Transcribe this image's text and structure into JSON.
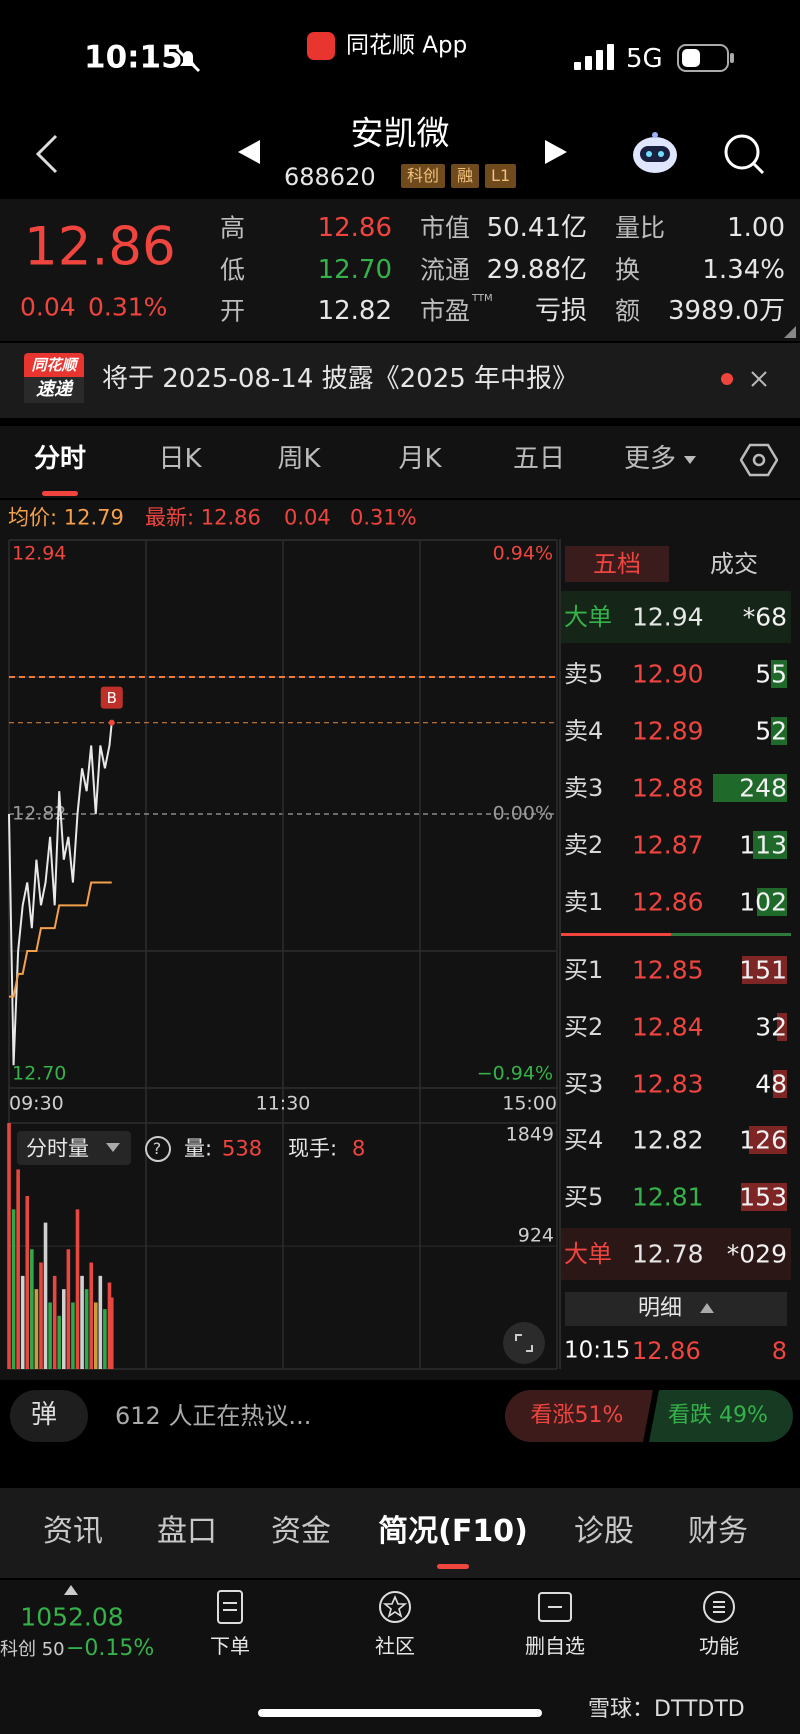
{
  "status_bar": {
    "time": "10:15",
    "app": "同花顺 App",
    "network": "5G"
  },
  "header": {
    "name": "安凯微",
    "code": "688620",
    "tags": [
      "科创",
      "融",
      "L1"
    ]
  },
  "quote": {
    "price": "12.86",
    "change": "0.04",
    "change_pct": "0.31%",
    "fields": [
      {
        "label": "高",
        "value": "12.86",
        "color": "#f0453f"
      },
      {
        "label": "低",
        "value": "12.70",
        "color": "#35b24a"
      },
      {
        "label": "开",
        "value": "12.82",
        "color": "#e6e6e6"
      },
      {
        "label": "市值",
        "value": "50.41亿",
        "color": "#e6e6e6"
      },
      {
        "label": "流通",
        "value": "29.88亿",
        "color": "#e6e6e6"
      },
      {
        "label": "市盈",
        "sup": "TTM",
        "value": "亏损",
        "color": "#e6e6e6"
      },
      {
        "label": "量比",
        "value": "1.00",
        "color": "#e6e6e6"
      },
      {
        "label": "换",
        "value": "1.34%",
        "color": "#e6e6e6"
      },
      {
        "label": "额",
        "value": "3989.0万",
        "color": "#e6e6e6"
      }
    ]
  },
  "notice": {
    "badge_top": "同花顺",
    "badge_bottom": "速递",
    "text": "将于 2025-08-14 披露《2025 年中报》"
  },
  "tabs": {
    "items": [
      "分时",
      "日K",
      "周K",
      "月K",
      "五日",
      "更多"
    ],
    "active": 0
  },
  "info": {
    "average": "均价: 12.79",
    "latest": "最新: 12.86",
    "change": "0.04",
    "change_pct": "0.31%"
  },
  "chart_data": [
    {
      "type": "line",
      "x": [
        "09:30",
        "09:32",
        "09:34",
        "09:36",
        "09:38",
        "09:40",
        "09:42",
        "09:44",
        "09:46",
        "09:48",
        "09:50",
        "09:52",
        "09:54",
        "09:56",
        "09:58",
        "10:00",
        "10:02",
        "10:04",
        "10:06",
        "10:08",
        "10:10",
        "10:12",
        "10:14",
        "10:15"
      ],
      "series": [
        {
          "color": "#e8e8e8",
          "values": [
            12.82,
            12.71,
            12.76,
            12.78,
            12.79,
            12.77,
            12.8,
            12.78,
            12.79,
            12.81,
            12.78,
            12.83,
            12.8,
            12.81,
            12.79,
            12.82,
            12.84,
            12.83,
            12.85,
            12.82,
            12.85,
            12.84,
            12.85,
            12.86
          ]
        },
        {
          "color": "#f5a04a",
          "values": [
            12.74,
            12.74,
            12.75,
            12.75,
            12.76,
            12.76,
            12.76,
            12.77,
            12.77,
            12.77,
            12.77,
            12.78,
            12.78,
            12.78,
            12.78,
            12.78,
            12.78,
            12.78,
            12.79,
            12.79,
            12.79,
            12.79,
            12.79,
            12.79
          ]
        }
      ],
      "xlim": [
        "09:30",
        "15:00"
      ],
      "xticks": [
        "09:30",
        "11:30",
        "15:00"
      ],
      "ylim": [
        12.7,
        12.94
      ],
      "yticks": [
        {
          "value": 12.7,
          "label": "12.70"
        },
        12.82,
        12.94
      ],
      "y2lim": [
        -0.94,
        0.94
      ],
      "y2ticks": [
        {
          "value": -0.94,
          "label": "−0.94%"
        },
        {
          "value": 0,
          "label": "0.00%"
        },
        {
          "value": 0.94,
          "label": "0.94%"
        }
      ],
      "hlines": [
        {
          "value": 12.88,
          "color": "#f07a3c"
        }
      ],
      "grid": true,
      "marker": "B"
    },
    {
      "type": "bar",
      "x": [
        "09:30",
        "09:32",
        "09:34",
        "09:36",
        "09:38",
        "09:40",
        "09:42",
        "09:44",
        "09:46",
        "09:48",
        "09:50",
        "09:52",
        "09:54",
        "09:56",
        "09:58",
        "10:00",
        "10:02",
        "10:04",
        "10:06",
        "10:08",
        "10:10",
        "10:12",
        "10:14",
        "10:15"
      ],
      "values": [
        1849,
        1200,
        1500,
        700,
        1300,
        900,
        600,
        800,
        1100,
        500,
        700,
        400,
        600,
        900,
        500,
        1200,
        700,
        600,
        800,
        500,
        700,
        450,
        650,
        538
      ],
      "colors": [
        "#e8473f",
        "#2fa84a",
        "#e8473f",
        "#d0d0d0",
        "#e8473f",
        "#2fa84a",
        "#c8a040",
        "#e8473f",
        "#d0d0d0",
        "#2fa84a",
        "#e8473f",
        "#2fa84a",
        "#d0d0d0",
        "#e8473f",
        "#2fa84a",
        "#e8473f",
        "#d0d0d0",
        "#2fa84a",
        "#e8473f",
        "#c8a040",
        "#d0d0d0",
        "#2fa84a",
        "#e8473f",
        "#e8473f"
      ],
      "xlim": [
        "09:30",
        "15:00"
      ],
      "ylim": [
        0,
        1849
      ],
      "yticks": [
        924,
        1849
      ]
    }
  ],
  "volume_header": {
    "selector": "分时量",
    "help_icon": "?",
    "volume_label": "量:",
    "volume": 538,
    "hand_label": "现手:",
    "hand": 8
  },
  "order_book": {
    "tabs": [
      "五档",
      "成交"
    ],
    "ask_bar_color": "#1f6a2b",
    "bid_bar_color": "#7e2626",
    "rows": [
      {
        "label": "大单",
        "price": "12.94",
        "volume": "*68",
        "label_color": "#35b24a",
        "price_color": "#e6e6e6"
      },
      {
        "label": "卖5",
        "price": "12.90",
        "volume": 55,
        "side": "ask",
        "price_color": "#f0453f"
      },
      {
        "label": "卖4",
        "price": "12.89",
        "volume": 52,
        "side": "ask",
        "price_color": "#f0453f"
      },
      {
        "label": "卖3",
        "price": "12.88",
        "volume": 248,
        "side": "ask",
        "price_color": "#f0453f"
      },
      {
        "label": "卖2",
        "price": "12.87",
        "volume": 113,
        "side": "ask",
        "price_color": "#f0453f"
      },
      {
        "label": "卖1",
        "price": "12.86",
        "volume": 102,
        "side": "ask",
        "price_color": "#f0453f"
      },
      {
        "label": "买1",
        "price": "12.85",
        "volume": 151,
        "side": "bid",
        "price_color": "#f0453f"
      },
      {
        "label": "买2",
        "price": "12.84",
        "volume": 32,
        "side": "bid",
        "price_color": "#f0453f"
      },
      {
        "label": "买3",
        "price": "12.83",
        "volume": 48,
        "side": "bid",
        "price_color": "#f0453f"
      },
      {
        "label": "买4",
        "price": "12.82",
        "volume": 126,
        "side": "bid",
        "price_color": "#e6e6e6"
      },
      {
        "label": "买5",
        "price": "12.81",
        "volume": 153,
        "side": "bid",
        "price_color": "#35b24a"
      },
      {
        "label": "大单",
        "price": "12.78",
        "volume": "*029",
        "label_color": "#f0453f",
        "price_color": "#e6e6e6"
      }
    ]
  },
  "detail": {
    "title": "明细",
    "time": "10:15",
    "price": "12.86",
    "volume": 8
  },
  "discussion": {
    "icon": "弹",
    "text": "612 人正在热议...",
    "bull": "看涨51%",
    "bear": "看跌 49%"
  },
  "bottom_tabs": {
    "items": [
      "资讯",
      "盘口",
      "资金",
      "简况(F10)",
      "诊股",
      "财务"
    ],
    "active": 3
  },
  "nav": {
    "index_value": "1052.08",
    "index_name": "科创 50",
    "index_change": "−0.15%",
    "items": [
      "下单",
      "社区",
      "删自选",
      "功能"
    ]
  },
  "watermark": "雪球：DTTDTD"
}
